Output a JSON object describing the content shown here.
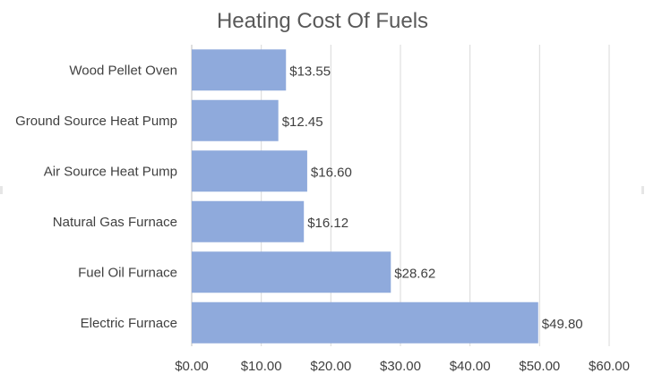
{
  "chart_data": {
    "type": "bar",
    "orientation": "horizontal",
    "title": "Heating Cost Of Fuels",
    "xlabel": "",
    "ylabel": "",
    "categories": [
      "Wood Pellet Oven",
      "Ground Source Heat Pump",
      "Air Source Heat Pump",
      "Natural Gas Furnace",
      "Fuel Oil Furnace",
      "Electric Furnace"
    ],
    "values": [
      13.55,
      12.45,
      16.6,
      16.12,
      28.62,
      49.8
    ],
    "data_labels": [
      "$13.55",
      "$12.45",
      "$16.60",
      "$16.12",
      "$28.62",
      "$49.80"
    ],
    "xlim": [
      0,
      60
    ],
    "x_ticks": [
      0,
      10,
      20,
      30,
      40,
      50,
      60
    ],
    "x_tick_labels": [
      "$0.00",
      "$10.00",
      "$20.00",
      "$30.00",
      "$40.00",
      "$50.00",
      "$60.00"
    ],
    "grid": "vertical",
    "legend": "none",
    "colors": {
      "bar": "#8faadc",
      "gridline": "#d9d9d9",
      "text": "#404040",
      "title": "#595959"
    }
  }
}
